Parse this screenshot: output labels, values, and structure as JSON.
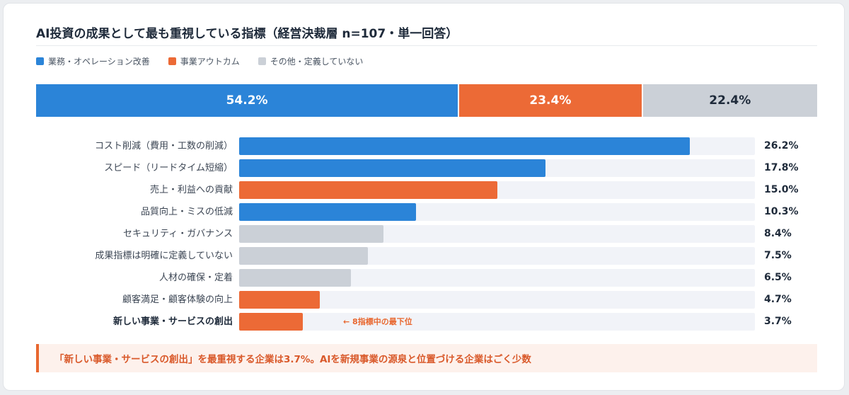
{
  "title": "AI投資の成果として最も重視している指標（経営決裁層 n=107・単一回答）",
  "legend": [
    {
      "label": "業務・オペレーション改善",
      "color": "#2b84d8"
    },
    {
      "label": "事業アウトカム",
      "color": "#ec6a36"
    },
    {
      "label": "その他・定義していない",
      "color": "#cbd0d7"
    }
  ],
  "chart_data": [
    {
      "type": "bar",
      "orientation": "horizontal-stacked-100",
      "title": "",
      "series": [
        {
          "name": "業務・オペレーション改善",
          "value": 54.2,
          "label": "54.2%",
          "color": "#2b84d8",
          "text_color": "#ffffff"
        },
        {
          "name": "事業アウトカム",
          "value": 23.4,
          "label": "23.4%",
          "color": "#ec6a36",
          "text_color": "#ffffff"
        },
        {
          "name": "その他・定義していない",
          "value": 22.4,
          "label": "22.4%",
          "color": "#cbd0d7",
          "text_color": "#1e2a3a"
        }
      ]
    },
    {
      "type": "bar",
      "orientation": "horizontal",
      "title": "",
      "xlim": [
        0,
        30
      ],
      "categories": [
        "コスト削減（費用・工数の削減）",
        "スピード（リードタイム短縮）",
        "売上・利益への貢献",
        "品質向上・ミスの低減",
        "セキュリティ・ガバナンス",
        "成果指標は明確に定義していない",
        "人材の確保・定着",
        "顧客満足・顧客体験の向上",
        "新しい事業・サービスの創出"
      ],
      "values": [
        26.2,
        17.8,
        15.0,
        10.3,
        8.4,
        7.5,
        6.5,
        4.7,
        3.7
      ],
      "value_labels": [
        "26.2%",
        "17.8%",
        "15.0%",
        "10.3%",
        "8.4%",
        "7.5%",
        "6.5%",
        "4.7%",
        "3.7%"
      ],
      "groups": [
        "業務・オペレーション改善",
        "業務・オペレーション改善",
        "事業アウトカム",
        "業務・オペレーション改善",
        "その他・定義していない",
        "その他・定義していない",
        "その他・定義していない",
        "事業アウトカム",
        "事業アウトカム"
      ],
      "highlight": "新しい事業・サービスの創出",
      "annotation": {
        "category": "新しい事業・サービスの創出",
        "text": "← 8指標中の最下位"
      }
    }
  ],
  "callout": "「新しい事業・サービスの創出」を最重視する企業は3.7%。AIを新規事業の源泉と位置づける企業はごく少数"
}
